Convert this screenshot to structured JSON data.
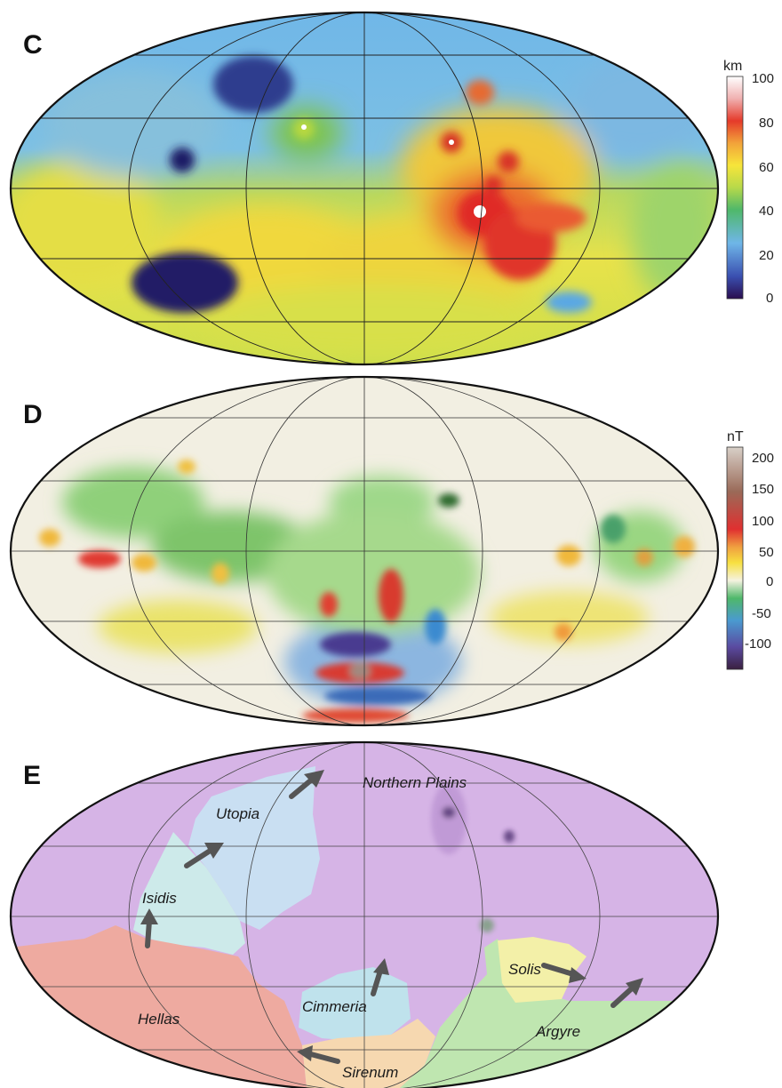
{
  "panels": [
    {
      "letter": "C",
      "scale": {
        "unit": "km",
        "ticks": [
          "100",
          "80",
          "60",
          "40",
          "20",
          "0"
        ],
        "colors": [
          "#2a0d4f",
          "#3a4fb0",
          "#6fb6e8",
          "#4fb86a",
          "#b7d94a",
          "#f7e53a",
          "#f2a33a",
          "#e53a2a",
          "#f0b0b0",
          "#ffffff"
        ]
      }
    },
    {
      "letter": "D",
      "scale": {
        "unit": "nT",
        "ticks": [
          "200",
          "150",
          "100",
          "50",
          "0",
          "-50",
          "-100"
        ],
        "colors": [
          "#3a2040",
          "#5a4aa0",
          "#4a9ad0",
          "#4fb86a",
          "#f5f2e0",
          "#f7e040",
          "#f0a040",
          "#e03030",
          "#9a6a58",
          "#d8d0c8"
        ]
      }
    },
    {
      "letter": "E",
      "regions": [
        {
          "name": "Northern Plains",
          "color": "#d6b4e6"
        },
        {
          "name": "Utopia",
          "color": "#c9dff2"
        },
        {
          "name": "Isidis",
          "color": "#cdeaea"
        },
        {
          "name": "Hellas",
          "color": "#eeaaa0"
        },
        {
          "name": "Cimmeria",
          "color": "#bfe2ec"
        },
        {
          "name": "Sirenum",
          "color": "#f6d8b0"
        },
        {
          "name": "Solis",
          "color": "#f3f0a8"
        },
        {
          "name": "Argyre",
          "color": "#bfe6b0"
        }
      ]
    }
  ]
}
